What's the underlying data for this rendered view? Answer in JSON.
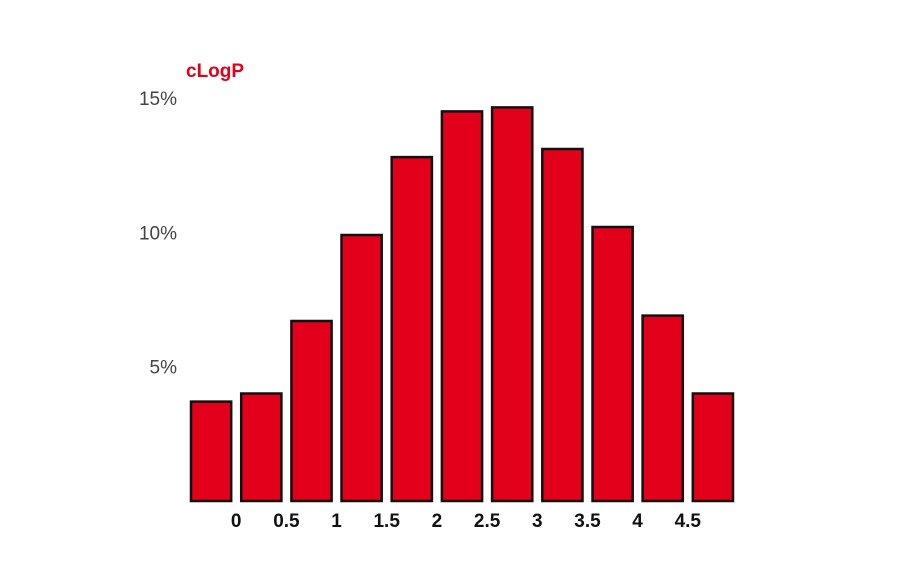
{
  "chart_data": {
    "type": "bar",
    "title": "cLogP",
    "xlabel": "",
    "ylabel": "",
    "bins": [
      {
        "range": [
          -0.5,
          0
        ],
        "value": 3.7
      },
      {
        "range": [
          0,
          0.5
        ],
        "value": 4.0
      },
      {
        "range": [
          0.5,
          1
        ],
        "value": 6.7
      },
      {
        "range": [
          1,
          1.5
        ],
        "value": 9.9
      },
      {
        "range": [
          1.5,
          2
        ],
        "value": 12.8
      },
      {
        "range": [
          2,
          2.5
        ],
        "value": 14.5
      },
      {
        "range": [
          2.5,
          3
        ],
        "value": 14.65
      },
      {
        "range": [
          3,
          3.5
        ],
        "value": 13.1
      },
      {
        "range": [
          3.5,
          4
        ],
        "value": 10.2
      },
      {
        "range": [
          4,
          4.5
        ],
        "value": 6.9
      },
      {
        "range": [
          4.5,
          5
        ],
        "value": 4.0
      }
    ],
    "x_ticks": [
      {
        "value": 0,
        "label": "0"
      },
      {
        "value": 0.5,
        "label": "0.5"
      },
      {
        "value": 1,
        "label": "1"
      },
      {
        "value": 1.5,
        "label": "1.5"
      },
      {
        "value": 2,
        "label": "2"
      },
      {
        "value": 2.5,
        "label": "2.5"
      },
      {
        "value": 3,
        "label": "3"
      },
      {
        "value": 3.5,
        "label": "3.5"
      },
      {
        "value": 4,
        "label": "4"
      },
      {
        "value": 4.5,
        "label": "4.5"
      }
    ],
    "y_ticks": [
      {
        "value": 5,
        "label": "5%"
      },
      {
        "value": 10,
        "label": "10%"
      },
      {
        "value": 15,
        "label": "15%"
      }
    ],
    "xlim": [
      -0.5,
      5
    ],
    "ylim": [
      0,
      15
    ],
    "grid": false,
    "legend": "none",
    "colors": {
      "bar_fill": "#e2001a",
      "bar_stroke": "#111111",
      "title": "#e2001a"
    }
  }
}
